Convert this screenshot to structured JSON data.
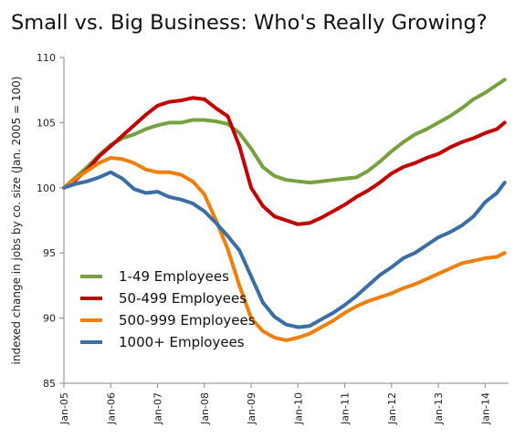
{
  "chart_data": {
    "type": "line",
    "title": "Small vs. Big Business: Who's Really Growing?",
    "ylabel": "indexed change in jobs by co. size (Jan. 2005 = 100)",
    "xlabel": "",
    "ylim": [
      85,
      110
    ],
    "yticks": [
      85,
      90,
      95,
      100,
      105,
      110
    ],
    "xticks": [
      "Jan-05",
      "Jan-06",
      "Jan-07",
      "Jan-08",
      "Jan-09",
      "Jan-10",
      "Jan-11",
      "Jan-12",
      "Jan-13",
      "Jan-14"
    ],
    "legend_position": "bottom-left",
    "grid": false,
    "series": [
      {
        "name": "1-49 Employees",
        "color": "#77A13F",
        "points": [
          [
            0,
            100.0
          ],
          [
            3,
            100.8
          ],
          [
            6,
            101.6
          ],
          [
            9,
            102.5
          ],
          [
            12,
            103.3
          ],
          [
            15,
            103.8
          ],
          [
            18,
            104.1
          ],
          [
            21,
            104.5
          ],
          [
            24,
            104.8
          ],
          [
            27,
            105.0
          ],
          [
            30,
            105.0
          ],
          [
            33,
            105.2
          ],
          [
            36,
            105.2
          ],
          [
            39,
            105.1
          ],
          [
            42,
            104.9
          ],
          [
            45,
            104.2
          ],
          [
            48,
            103.0
          ],
          [
            51,
            101.6
          ],
          [
            54,
            100.9
          ],
          [
            57,
            100.6
          ],
          [
            60,
            100.5
          ],
          [
            63,
            100.4
          ],
          [
            66,
            100.5
          ],
          [
            69,
            100.6
          ],
          [
            72,
            100.7
          ],
          [
            75,
            100.8
          ],
          [
            78,
            101.3
          ],
          [
            81,
            102.0
          ],
          [
            84,
            102.8
          ],
          [
            87,
            103.5
          ],
          [
            90,
            104.1
          ],
          [
            93,
            104.5
          ],
          [
            96,
            105.0
          ],
          [
            99,
            105.5
          ],
          [
            102,
            106.1
          ],
          [
            105,
            106.8
          ],
          [
            108,
            107.3
          ],
          [
            111,
            107.9
          ],
          [
            113,
            108.3
          ]
        ]
      },
      {
        "name": "50-499 Employees",
        "color": "#C00000",
        "points": [
          [
            0,
            100.0
          ],
          [
            3,
            100.6
          ],
          [
            6,
            101.4
          ],
          [
            9,
            102.4
          ],
          [
            12,
            103.2
          ],
          [
            15,
            104.0
          ],
          [
            18,
            104.8
          ],
          [
            21,
            105.6
          ],
          [
            24,
            106.3
          ],
          [
            27,
            106.6
          ],
          [
            30,
            106.7
          ],
          [
            33,
            106.9
          ],
          [
            36,
            106.8
          ],
          [
            39,
            106.1
          ],
          [
            42,
            105.5
          ],
          [
            45,
            103.2
          ],
          [
            48,
            100.0
          ],
          [
            51,
            98.6
          ],
          [
            54,
            97.8
          ],
          [
            57,
            97.5
          ],
          [
            60,
            97.2
          ],
          [
            63,
            97.3
          ],
          [
            66,
            97.7
          ],
          [
            69,
            98.2
          ],
          [
            72,
            98.7
          ],
          [
            75,
            99.3
          ],
          [
            78,
            99.8
          ],
          [
            81,
            100.4
          ],
          [
            84,
            101.1
          ],
          [
            87,
            101.6
          ],
          [
            90,
            101.9
          ],
          [
            93,
            102.3
          ],
          [
            96,
            102.6
          ],
          [
            99,
            103.1
          ],
          [
            102,
            103.5
          ],
          [
            105,
            103.8
          ],
          [
            108,
            104.2
          ],
          [
            111,
            104.5
          ],
          [
            113,
            105.0
          ]
        ]
      },
      {
        "name": "500-999 Employees",
        "color": "#F07F09",
        "points": [
          [
            0,
            100.0
          ],
          [
            3,
            100.7
          ],
          [
            6,
            101.3
          ],
          [
            9,
            101.9
          ],
          [
            12,
            102.3
          ],
          [
            15,
            102.2
          ],
          [
            18,
            101.9
          ],
          [
            21,
            101.4
          ],
          [
            24,
            101.2
          ],
          [
            27,
            101.2
          ],
          [
            30,
            101.0
          ],
          [
            33,
            100.5
          ],
          [
            36,
            99.5
          ],
          [
            39,
            97.5
          ],
          [
            42,
            95.3
          ],
          [
            45,
            92.5
          ],
          [
            48,
            90.0
          ],
          [
            51,
            89.0
          ],
          [
            54,
            88.5
          ],
          [
            57,
            88.3
          ],
          [
            60,
            88.5
          ],
          [
            63,
            88.8
          ],
          [
            66,
            89.3
          ],
          [
            69,
            89.8
          ],
          [
            72,
            90.4
          ],
          [
            75,
            90.9
          ],
          [
            78,
            91.3
          ],
          [
            81,
            91.6
          ],
          [
            84,
            91.9
          ],
          [
            87,
            92.3
          ],
          [
            90,
            92.6
          ],
          [
            93,
            93.0
          ],
          [
            96,
            93.4
          ],
          [
            99,
            93.8
          ],
          [
            102,
            94.2
          ],
          [
            105,
            94.4
          ],
          [
            108,
            94.6
          ],
          [
            111,
            94.7
          ],
          [
            113,
            95.0
          ]
        ]
      },
      {
        "name": "1000+ Employees",
        "color": "#3A6EA5",
        "points": [
          [
            0,
            100.0
          ],
          [
            3,
            100.3
          ],
          [
            6,
            100.5
          ],
          [
            9,
            100.8
          ],
          [
            12,
            101.2
          ],
          [
            15,
            100.7
          ],
          [
            18,
            99.9
          ],
          [
            21,
            99.6
          ],
          [
            24,
            99.7
          ],
          [
            27,
            99.3
          ],
          [
            30,
            99.1
          ],
          [
            33,
            98.8
          ],
          [
            36,
            98.2
          ],
          [
            39,
            97.3
          ],
          [
            42,
            96.3
          ],
          [
            45,
            95.2
          ],
          [
            48,
            93.2
          ],
          [
            51,
            91.2
          ],
          [
            54,
            90.1
          ],
          [
            57,
            89.5
          ],
          [
            60,
            89.3
          ],
          [
            63,
            89.4
          ],
          [
            66,
            89.9
          ],
          [
            69,
            90.4
          ],
          [
            72,
            91.0
          ],
          [
            75,
            91.7
          ],
          [
            78,
            92.5
          ],
          [
            81,
            93.3
          ],
          [
            84,
            93.9
          ],
          [
            87,
            94.6
          ],
          [
            90,
            95.0
          ],
          [
            93,
            95.6
          ],
          [
            96,
            96.2
          ],
          [
            99,
            96.6
          ],
          [
            102,
            97.1
          ],
          [
            105,
            97.8
          ],
          [
            108,
            98.9
          ],
          [
            111,
            99.6
          ],
          [
            113,
            100.4
          ]
        ]
      }
    ]
  }
}
